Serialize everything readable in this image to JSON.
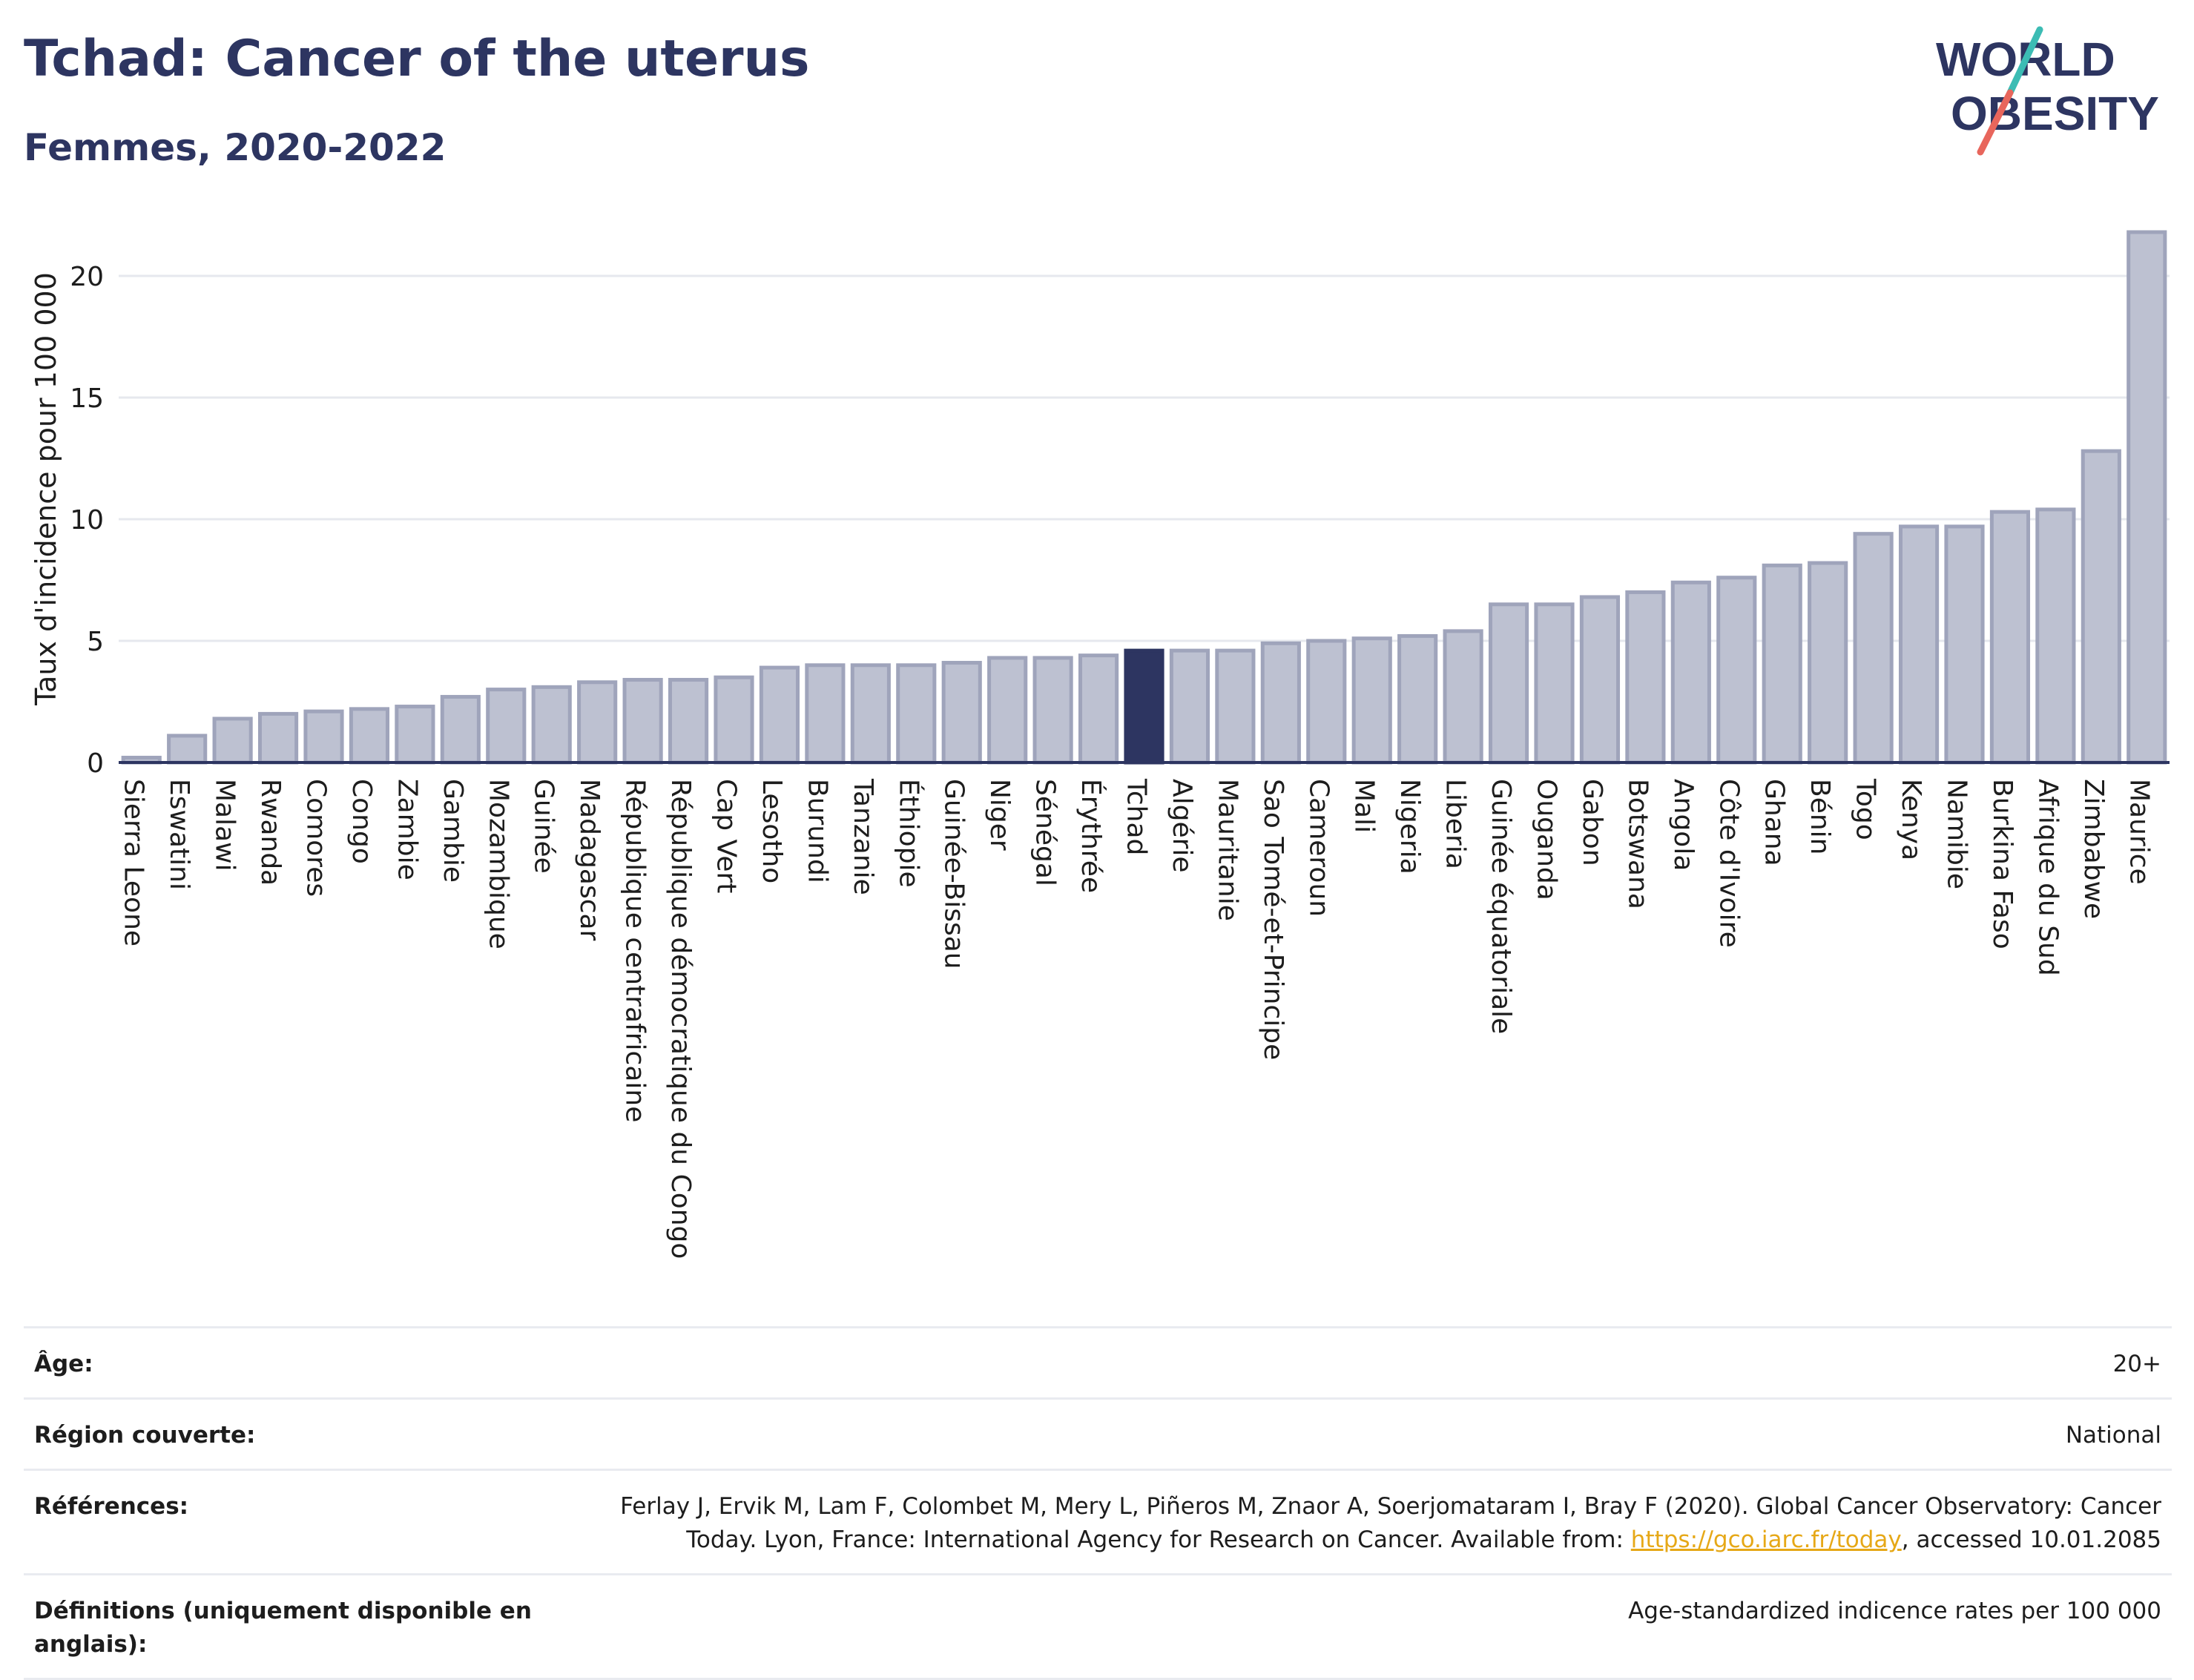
{
  "header": {
    "title": "Tchad: Cancer of the uterus",
    "subtitle": "Femmes, 2020-2022"
  },
  "logo": {
    "line1": "WORLD",
    "line2": "OBESITY"
  },
  "colors": {
    "bar": "#bdc1d1",
    "bar_stroke": "#9fa4bb",
    "highlight": "#2d3561",
    "axis": "#2d3561",
    "grid": "#e6e8ee",
    "link": "#e6a817"
  },
  "chart_data": {
    "type": "bar",
    "title": "Tchad: Cancer of the uterus",
    "subtitle": "Femmes, 2020-2022",
    "ylabel": "Taux d'incidence pour 100 000",
    "xlabel": "",
    "ylim": [
      0,
      22.5
    ],
    "yticks": [
      0,
      5,
      10,
      15,
      20
    ],
    "grid": true,
    "highlight": "Tchad",
    "categories": [
      "Sierra Leone",
      "Eswatini",
      "Malawi",
      "Rwanda",
      "Comores",
      "Congo",
      "Zambie",
      "Gambie",
      "Mozambique",
      "Guinée",
      "Madagascar",
      "République centrafricaine",
      "République démocratique du Congo",
      "Cap Vert",
      "Lesotho",
      "Burundi",
      "Tanzanie",
      "Éthiopie",
      "Guinée-Bissau",
      "Niger",
      "Sénégal",
      "Érythrée",
      "Tchad",
      "Algérie",
      "Mauritanie",
      "Sao Tomé-et-Principe",
      "Cameroun",
      "Mali",
      "Nigeria",
      "Liberia",
      "Guinée équatoriale",
      "Ouganda",
      "Gabon",
      "Botswana",
      "Angola",
      "Côte d'Ivoire",
      "Ghana",
      "Bénin",
      "Togo",
      "Kenya",
      "Namibie",
      "Burkina Faso",
      "Afrique du Sud",
      "Zimbabwe",
      "Maurice"
    ],
    "values": [
      0.2,
      1.1,
      1.8,
      2.0,
      2.1,
      2.2,
      2.3,
      2.7,
      3.0,
      3.1,
      3.3,
      3.4,
      3.4,
      3.5,
      3.9,
      4.0,
      4.0,
      4.0,
      4.1,
      4.3,
      4.3,
      4.4,
      4.6,
      4.6,
      4.6,
      4.9,
      5.0,
      5.1,
      5.2,
      5.4,
      6.5,
      6.5,
      6.8,
      7.0,
      7.4,
      7.6,
      8.1,
      8.2,
      9.4,
      9.7,
      9.7,
      10.3,
      10.4,
      12.8,
      21.8
    ]
  },
  "meta": {
    "age_label": "Âge:",
    "age_value": "20+",
    "region_label": "Région couverte:",
    "region_value": "National",
    "references_label": "Références:",
    "references_text_1": "Ferlay J, Ervik M, Lam F, Colombet M, Mery L, Piñeros M, Znaor A, Soerjomataram I, Bray F (2020). Global Cancer Observatory: Cancer",
    "references_text_2": "Today. Lyon, France: International Agency for Research on Cancer. Available from: ",
    "references_link": "https://gco.iarc.fr/today",
    "references_text_3": ", accessed 10.01.2085",
    "definitions_label": "Définitions (uniquement disponible en anglais):",
    "definitions_value": "Age-standardized indicence rates per 100 000"
  }
}
